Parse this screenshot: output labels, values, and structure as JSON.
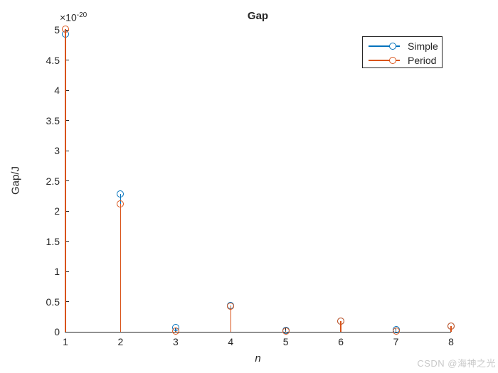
{
  "title": "Gap",
  "watermark": "CSDN @海神之光",
  "axes": {
    "offset_base": "×10",
    "offset_exp": "-20",
    "xlabel": "n",
    "ylabel": "Gap/J",
    "x_ticks": [
      "1",
      "2",
      "3",
      "4",
      "5",
      "6",
      "7",
      "8"
    ],
    "y_ticks": [
      "0",
      "0.5",
      "1",
      "1.5",
      "2",
      "2.5",
      "3",
      "3.5",
      "4",
      "4.5",
      "5"
    ]
  },
  "legend": {
    "position": "northeast",
    "items": [
      {
        "label": "Simple",
        "color": "#0072BD"
      },
      {
        "label": "Period",
        "color": "#D95319"
      }
    ]
  },
  "colors": {
    "axis": "#262626",
    "background": "#ffffff",
    "watermark": "#c9c9c9"
  },
  "chart_data": {
    "type": "stem",
    "title": "Gap",
    "xlabel": "n",
    "ylabel": "Gap/J",
    "y_unit_multiplier": "1e-20",
    "x": [
      1,
      2,
      3,
      4,
      5,
      6,
      7,
      8
    ],
    "series": [
      {
        "name": "Simple",
        "color": "#0072BD",
        "marker": "hollow-circle",
        "values": [
          4.93,
          2.28,
          0.07,
          0.43,
          0.02,
          0.18,
          0.03,
          0.1
        ]
      },
      {
        "name": "Period",
        "color": "#D95319",
        "marker": "hollow-circle",
        "values": [
          5.01,
          2.12,
          0.01,
          0.42,
          0.01,
          0.18,
          0.01,
          0.1
        ]
      }
    ],
    "xlim": [
      1,
      8
    ],
    "ylim": [
      0,
      5
    ],
    "grid": false,
    "box": false,
    "legend_position": "northeast"
  }
}
